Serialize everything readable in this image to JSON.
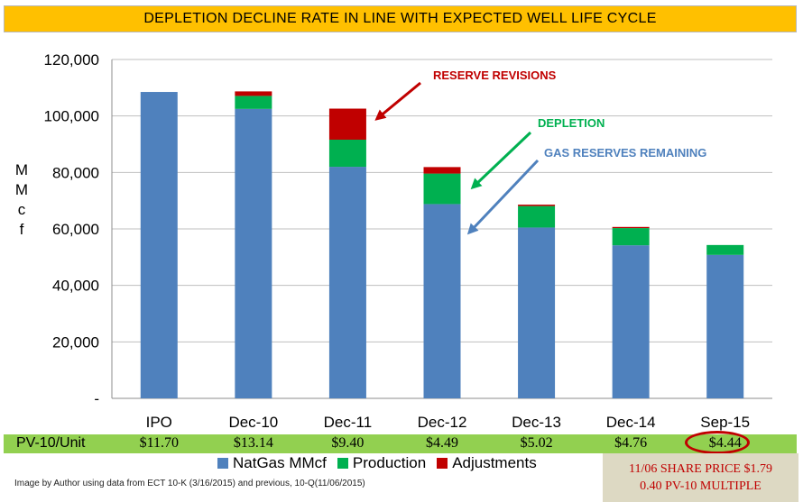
{
  "title": "DEPLETION DECLINE RATE IN LINE WITH EXPECTED WELL LIFE CYCLE",
  "chart_data": {
    "type": "bar",
    "stacked": true,
    "categories": [
      "IPO",
      "Dec-10",
      "Dec-11",
      "Dec-12",
      "Dec-13",
      "Dec-14",
      "Sep-15"
    ],
    "series": [
      {
        "name": "NatGas MMcf",
        "color": "#4f81bd",
        "values": [
          108500,
          102500,
          82000,
          68800,
          60500,
          54200,
          50800
        ]
      },
      {
        "name": "Production",
        "color": "#00b050",
        "values": [
          0,
          4600,
          9600,
          10800,
          7600,
          6100,
          3500
        ]
      },
      {
        "name": "Adjustments",
        "color": "#c00000",
        "values": [
          0,
          1600,
          11000,
          2300,
          500,
          400,
          0
        ]
      }
    ],
    "ylabel_letters": [
      "M",
      "M",
      "c",
      "f"
    ],
    "ylim": [
      0,
      120000
    ],
    "yticks": [
      {
        "value": 0,
        "label": "-"
      },
      {
        "value": 20000,
        "label": "20,000"
      },
      {
        "value": 40000,
        "label": "40,000"
      },
      {
        "value": 60000,
        "label": "60,000"
      },
      {
        "value": 80000,
        "label": "80,000"
      },
      {
        "value": 100000,
        "label": "100,000"
      },
      {
        "value": 120000,
        "label": "120,000"
      }
    ],
    "grid": true,
    "legend": "bottom",
    "annotations": [
      {
        "text": "RESERVE REVISIONS",
        "color": "#c00000"
      },
      {
        "text": "DEPLETION",
        "color": "#00b050"
      },
      {
        "text": "GAS RESERVES REMAINING",
        "color": "#4f81bd"
      }
    ]
  },
  "pv_row": {
    "label": "PV-10/Unit",
    "values": [
      "$11.70",
      "$13.14",
      "$9.40",
      "$4.49",
      "$5.02",
      "$4.76",
      "$4.44"
    ]
  },
  "credit": "Image by Author using data from ECT 10-K (3/16/2015) and previous, 10-Q(11/06/2015)",
  "share_box": {
    "line1": "11/06 SHARE  PRICE $1.79",
    "line2": "0.40 PV-10  MULTIPLE"
  }
}
